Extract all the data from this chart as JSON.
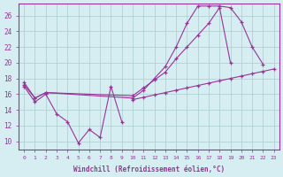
{
  "xlabel": "Windchill (Refroidissement éolien,°C)",
  "bg_color": "#d6eef2",
  "line_color": "#993399",
  "grid_color": "#aacccc",
  "xlim": [
    -0.5,
    23.5
  ],
  "ylim": [
    9.0,
    27.5
  ],
  "yticks": [
    10,
    12,
    14,
    16,
    18,
    20,
    22,
    24,
    26
  ],
  "xticks": [
    0,
    1,
    2,
    3,
    4,
    5,
    6,
    7,
    8,
    9,
    10,
    11,
    12,
    13,
    14,
    15,
    16,
    17,
    18,
    19,
    20,
    21,
    22,
    23
  ],
  "line1_y": [
    17.0,
    15.0,
    16.0,
    13.5,
    12.5,
    9.8,
    11.5,
    10.5,
    17.0,
    12.5,
    null,
    null,
    null,
    null,
    null,
    null,
    null,
    null,
    null,
    null,
    null,
    null,
    null,
    null
  ],
  "line2_y": [
    17.2,
    15.5,
    16.2,
    null,
    null,
    null,
    null,
    null,
    null,
    null,
    15.8,
    16.8,
    17.8,
    18.8,
    20.5,
    22.0,
    23.5,
    25.0,
    27.0,
    20.0,
    null,
    null,
    null,
    null
  ],
  "line3_y": [
    17.5,
    15.5,
    16.2,
    null,
    null,
    null,
    null,
    null,
    null,
    null,
    15.5,
    16.5,
    18.0,
    19.5,
    22.0,
    25.0,
    27.2,
    27.2,
    27.2,
    27.0,
    25.2,
    22.0,
    19.8,
    null
  ],
  "line4_y": [
    null,
    null,
    null,
    null,
    null,
    null,
    null,
    null,
    null,
    null,
    15.3,
    15.6,
    15.9,
    16.2,
    16.5,
    16.8,
    17.1,
    17.4,
    17.7,
    18.0,
    18.3,
    18.6,
    18.9,
    19.2
  ]
}
